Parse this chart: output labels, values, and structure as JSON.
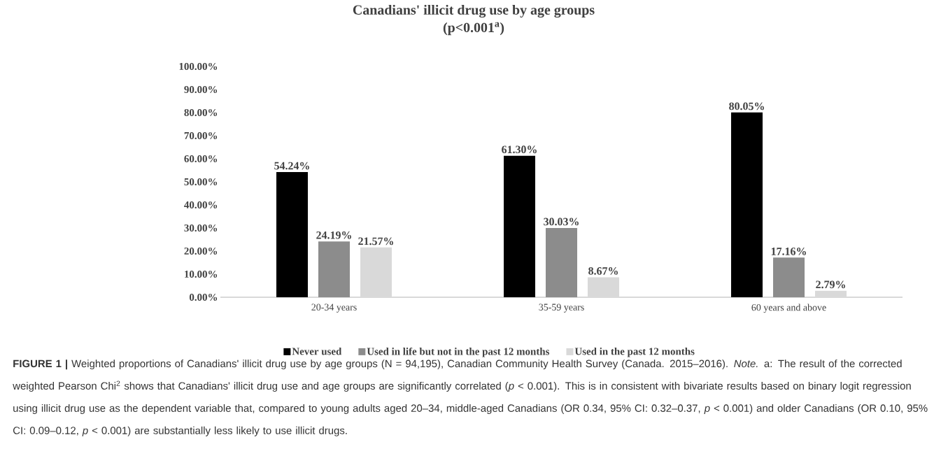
{
  "chart_data": {
    "type": "bar",
    "title": "Canadians' illicit drug use by age groups",
    "subtitle": "(p<0.001$^{a}$)",
    "categories": [
      "20-34 years",
      "35-59 years",
      "60 years and above"
    ],
    "series": [
      {
        "name": "Never used",
        "color": "#000000",
        "values": [
          54.24,
          61.3,
          80.05
        ],
        "value_labels": [
          "54.24%",
          "61.30%",
          "80.05%"
        ]
      },
      {
        "name": "Used in life but not in the past 12 months",
        "color": "#8c8c8c",
        "values": [
          24.19,
          30.03,
          17.16
        ],
        "value_labels": [
          "24.19%",
          "30.03%",
          "17.16%"
        ]
      },
      {
        "name": "Used in the past 12 months",
        "color": "#d9d9d9",
        "values": [
          21.57,
          8.67,
          2.79
        ],
        "value_labels": [
          "21.57%",
          "8.67%",
          "2.79%"
        ]
      }
    ],
    "ylim": [
      0,
      100
    ],
    "yticks": [
      {
        "value": 0,
        "label": "0.00%"
      },
      {
        "value": 10,
        "label": "10.00%"
      },
      {
        "value": 20,
        "label": "20.00%"
      },
      {
        "value": 30,
        "label": "30.00%"
      },
      {
        "value": 40,
        "label": "40.00%"
      },
      {
        "value": 50,
        "label": "50.00%"
      },
      {
        "value": 60,
        "label": "60.00%"
      },
      {
        "value": 70,
        "label": "70.00%"
      },
      {
        "value": 80,
        "label": "80.00%"
      },
      {
        "value": 90,
        "label": "90.00%"
      },
      {
        "value": 100,
        "label": "100.00%"
      }
    ],
    "legend": "bottom",
    "annotations": [
      "**FIGURE 1 |** Weighted proportions of Canadians' illicit drug use by age groups (N = 94,195), Canadian Community Health Survey (Canada. 2015–2016). *Note.* a: The result of the corrected weighted Pearson Chi$^{2}$ shows that Canadians' illicit drug use and age groups are significantly correlated (*p* < 0.001). This is in consistent with bivariate results based on binary logit regression using illicit drug use as the dependent variable that, compared to young adults aged 20–34, middle-aged Canadians (OR 0.34, 95% CI: 0.32–0.37, *p* < 0.001) and older Canadians (OR 0.10, 95% CI: 0.09–0.12, *p* < 0.001) are substantially less likely to use illicit drugs."
    ]
  }
}
